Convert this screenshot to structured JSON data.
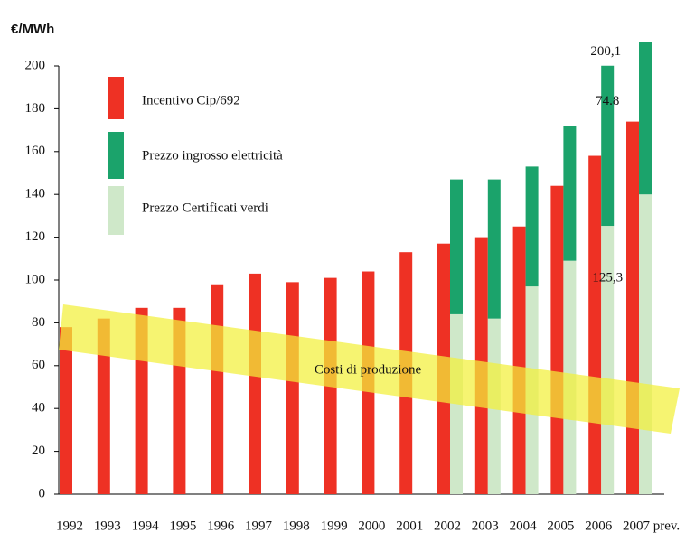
{
  "chart_data": {
    "type": "bar",
    "y_label": "€/MWh",
    "categories": [
      "1992",
      "1993",
      "1994",
      "1995",
      "1996",
      "1997",
      "1998",
      "1999",
      "2000",
      "2001",
      "2002",
      "2003",
      "2004",
      "2005",
      "2006",
      "2007 prev."
    ],
    "series": [
      {
        "name": "Incentivo Cip/692",
        "color": "#ee3124",
        "values": [
          78,
          82,
          87,
          87,
          98,
          103,
          99,
          101,
          104,
          113,
          117,
          120,
          125,
          144,
          158,
          174
        ]
      },
      {
        "name": "Prezzo ingrosso elettricità",
        "color": "#1ba36b",
        "stack": "green",
        "values": [
          null,
          null,
          null,
          null,
          null,
          null,
          null,
          null,
          null,
          null,
          63,
          65,
          56,
          63,
          74.8,
          71
        ],
        "value_labels": [
          null,
          null,
          null,
          null,
          null,
          null,
          null,
          null,
          null,
          null,
          null,
          null,
          null,
          null,
          "74.8",
          null
        ]
      },
      {
        "name": "Prezzo Certificati verdi",
        "color": "#cfe8c9",
        "stack": "green",
        "values": [
          null,
          null,
          null,
          null,
          null,
          null,
          null,
          null,
          null,
          null,
          84,
          82,
          97,
          109,
          125.3,
          140
        ],
        "value_labels": [
          null,
          null,
          null,
          null,
          null,
          null,
          null,
          null,
          null,
          null,
          null,
          null,
          null,
          null,
          "125,3",
          null
        ]
      }
    ],
    "annotations": [
      "Costi di produzione",
      "200,1"
    ],
    "ylim": [
      0,
      200
    ],
    "yticks": [
      0,
      20,
      40,
      60,
      80,
      100,
      120,
      140,
      160,
      180,
      200
    ],
    "grid": false
  }
}
